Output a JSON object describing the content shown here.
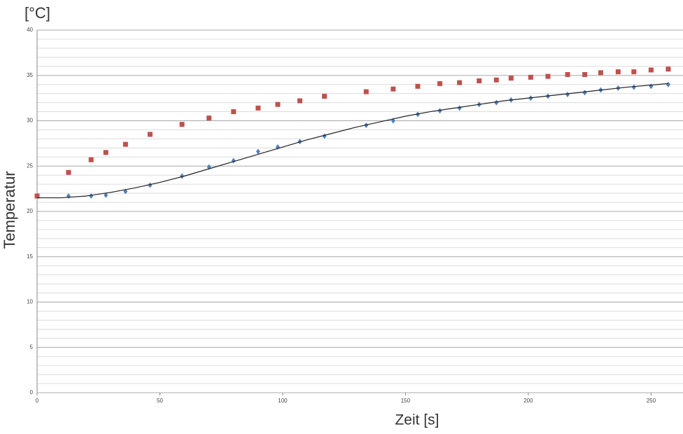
{
  "chart_data": {
    "type": "scatter",
    "y_unit": "[°C]",
    "ylabel": "Temperatur",
    "xlabel": "Zeit [s]",
    "xlim": [
      0,
      263
    ],
    "ylim": [
      0,
      40
    ],
    "xticks": [
      0,
      50,
      100,
      150,
      200,
      250
    ],
    "yticks": [
      0,
      5,
      10,
      15,
      20,
      25,
      30,
      35,
      40
    ],
    "yminorticks": [
      1,
      2,
      3,
      4,
      6,
      7,
      8,
      9,
      11,
      12,
      13,
      14,
      16,
      17,
      18,
      19,
      21,
      22,
      23,
      24,
      26,
      27,
      28,
      29,
      31,
      32,
      33,
      34,
      36,
      37,
      38,
      39
    ],
    "grid": true,
    "series": [
      {
        "color": "#c0504d",
        "marker": "square",
        "x": [
          0,
          12.8,
          22,
          28,
          36,
          46,
          59,
          70,
          80,
          90,
          98,
          107,
          117,
          134,
          145,
          155,
          164,
          172,
          180,
          187,
          193,
          201,
          208,
          216,
          223,
          229.5,
          236.6,
          243,
          250,
          257
        ],
        "values": [
          21.7,
          24.3,
          25.7,
          26.5,
          27.4,
          28.5,
          29.6,
          30.3,
          31.0,
          31.4,
          31.8,
          32.2,
          32.7,
          33.2,
          33.5,
          33.8,
          34.1,
          34.2,
          34.4,
          34.5,
          34.7,
          34.8,
          34.9,
          35.1,
          35.1,
          35.3,
          35.4,
          35.4,
          35.6,
          35.7
        ]
      },
      {
        "color": "#4f81bd",
        "marker": "diamond",
        "x": [
          12.8,
          22,
          28,
          36,
          46,
          59,
          70,
          80,
          90,
          98,
          107,
          117,
          134,
          145,
          155,
          164,
          172,
          180,
          187,
          193,
          201,
          208,
          216,
          223,
          229.5,
          236.6,
          243,
          250,
          257
        ],
        "values": [
          21.7,
          21.7,
          21.8,
          22.2,
          22.9,
          23.9,
          24.9,
          25.6,
          26.6,
          27.1,
          27.7,
          28.3,
          29.5,
          30.0,
          30.7,
          31.1,
          31.4,
          31.8,
          32.0,
          32.3,
          32.5,
          32.7,
          32.9,
          33.1,
          33.4,
          33.6,
          33.7,
          33.8,
          34.0
        ]
      },
      {
        "color": "#222222",
        "marker": "line",
        "x": [
          0,
          10,
          20,
          30,
          40,
          50,
          60,
          70,
          80,
          90,
          100,
          110,
          120,
          130,
          140,
          150,
          160,
          170,
          180,
          190,
          200,
          210,
          220,
          230,
          240,
          257
        ],
        "values": [
          21.5,
          21.5,
          21.7,
          22.1,
          22.6,
          23.2,
          23.9,
          24.7,
          25.5,
          26.3,
          27.1,
          27.9,
          28.6,
          29.3,
          29.9,
          30.5,
          31.0,
          31.4,
          31.8,
          32.2,
          32.5,
          32.8,
          33.1,
          33.4,
          33.7,
          34.1
        ]
      }
    ]
  }
}
